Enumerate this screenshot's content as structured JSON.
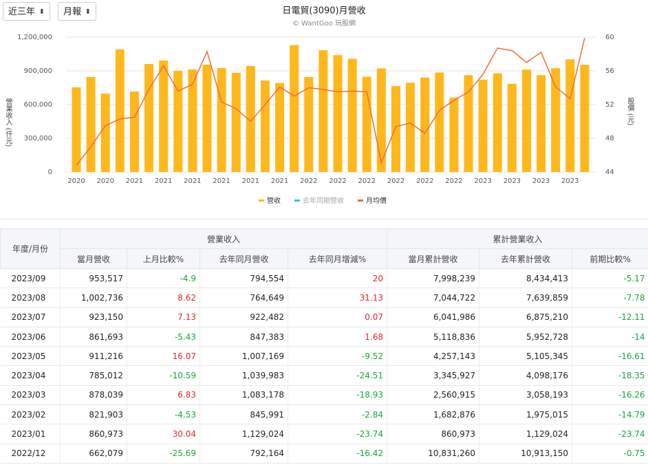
{
  "controls": [
    "近三年",
    "月報"
  ],
  "chart_data": {
    "type": "bar-line",
    "title": "日電貿(3090)月營收",
    "subtitle": "© WantGoo 玩股網",
    "y_label": "營業收入 (仟元)",
    "y2_label": "股價 (元)",
    "categories": [
      "2020",
      null,
      "2020",
      null,
      "2021",
      null,
      "2021",
      null,
      "2021",
      null,
      "2021",
      null,
      "2021",
      null,
      "2021",
      null,
      "2022",
      null,
      "2022",
      null,
      "2022",
      null,
      "2022",
      null,
      "2022",
      null,
      "2022",
      null,
      "2023",
      null,
      "2023",
      null,
      "2023",
      null,
      "2023",
      null
    ],
    "ylim": [
      0,
      1200000
    ],
    "yticks": [
      0,
      {
        "value": 300000,
        "label": "300,000"
      },
      {
        "value": 600000,
        "label": "600,000"
      },
      {
        "value": 900000,
        "label": "900,000"
      },
      {
        "value": 1200000,
        "label": "1,200,000"
      }
    ],
    "y2lim": [
      44,
      60
    ],
    "y2ticks": [
      44,
      48,
      52,
      56,
      60
    ],
    "grid": true,
    "series": [
      {
        "name": "營收",
        "type": "bar",
        "color": "#ffb81c",
        "values": [
          753000,
          845000,
          698000,
          1090000,
          716000,
          961000,
          992000,
          900000,
          912000,
          955000,
          925000,
          882000,
          943000,
          814000,
          792164,
          1129024,
          845991,
          1083178,
          1039983,
          1007169,
          847383,
          922482,
          764649,
          794554,
          840000,
          885000,
          662079,
          860973,
          821903,
          878039,
          785012,
          911216,
          861693,
          923150,
          1002736,
          953517
        ]
      },
      {
        "name": "去年同期營收",
        "type": "bar",
        "color": "#2ec7d9",
        "visible": false,
        "values": [
          null,
          null,
          null,
          null,
          null,
          null,
          null,
          null,
          null,
          null,
          null,
          null,
          null,
          null,
          null,
          null,
          null,
          null,
          null,
          null,
          null,
          null,
          null,
          null,
          null,
          null,
          null,
          null,
          null,
          null,
          null,
          null,
          null,
          null,
          null,
          null
        ]
      },
      {
        "name": "月均價",
        "type": "line",
        "axis": "y2",
        "color": "#f26b3a",
        "values": [
          44.8,
          47,
          49.5,
          50.3,
          50.5,
          53.8,
          56.6,
          53.6,
          54.4,
          58.3,
          52.3,
          51.5,
          50,
          52,
          54.1,
          53,
          54,
          53.8,
          53.5,
          53.6,
          53.5,
          45.1,
          49.4,
          49.8,
          48.6,
          51.3,
          52.5,
          53.5,
          55.6,
          58.7,
          58.4,
          57,
          58.2,
          54.1,
          52.7,
          59.9
        ]
      }
    ]
  },
  "table": {
    "header": "年度/月份",
    "groups": [
      "營業收入",
      "累計營業收入"
    ],
    "columns": [
      "當月營收",
      "上月比較%",
      "去年同月營收",
      "去年同月增減%",
      "當月累計營收",
      "去年累計營收",
      "前期比較%"
    ],
    "rows": [
      [
        "2023/09",
        "953,517",
        "-4.9",
        "794,554",
        "20",
        "7,998,239",
        "8,434,413",
        "-5.17"
      ],
      [
        "2023/08",
        "1,002,736",
        "8.62",
        "764,649",
        "31.13",
        "7,044,722",
        "7,639,859",
        "-7.78"
      ],
      [
        "2023/07",
        "923,150",
        "7.13",
        "922,482",
        "0.07",
        "6,041,986",
        "6,875,210",
        "-12.11"
      ],
      [
        "2023/06",
        "861,693",
        "-5.43",
        "847,383",
        "1.68",
        "5,118,836",
        "5,952,728",
        "-14"
      ],
      [
        "2023/05",
        "911,216",
        "16.07",
        "1,007,169",
        "-9.52",
        "4,257,143",
        "5,105,345",
        "-16.61"
      ],
      [
        "2023/04",
        "785,012",
        "-10.59",
        "1,039,983",
        "-24.51",
        "3,345,927",
        "4,098,176",
        "-18.35"
      ],
      [
        "2023/03",
        "878,039",
        "6.83",
        "1,083,178",
        "-18.93",
        "2,560,915",
        "3,058,193",
        "-16.26"
      ],
      [
        "2023/02",
        "821,903",
        "-4.53",
        "845,991",
        "-2.84",
        "1,682,876",
        "1,975,015",
        "-14.79"
      ],
      [
        "2023/01",
        "860,973",
        "30.04",
        "1,129,024",
        "-23.74",
        "860,973",
        "1,129,024",
        "-23.74"
      ],
      [
        "2022/12",
        "662,079",
        "-25.69",
        "792,164",
        "-16.42",
        "10,831,260",
        "10,913,150",
        "-0.75"
      ]
    ]
  }
}
